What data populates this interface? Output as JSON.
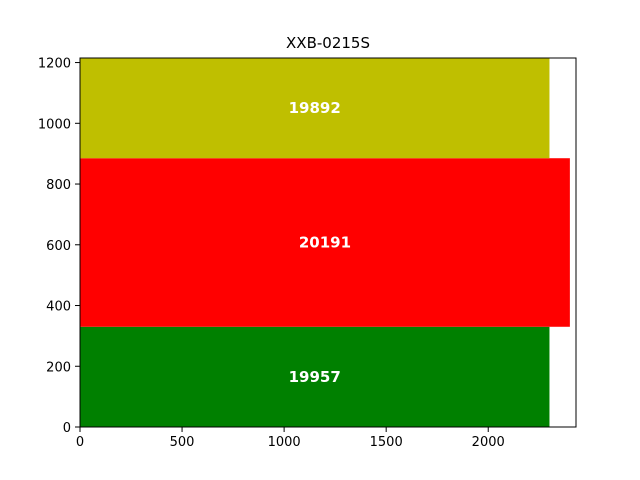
{
  "chart_data": {
    "type": "bar",
    "orientation": "horizontal",
    "title": "XXB-0215S",
    "xlabel": "",
    "ylabel": "",
    "xlim": [
      0,
      2430
    ],
    "ylim": [
      0,
      1215
    ],
    "x_ticks": [
      0,
      500,
      1000,
      1500,
      2000
    ],
    "y_ticks": [
      0,
      200,
      400,
      600,
      800,
      1000,
      1200
    ],
    "grid": false,
    "bars": [
      {
        "label": "19957",
        "y_start": 0,
        "y_end": 330,
        "x_end": 2300,
        "color": "#008000"
      },
      {
        "label": "20191",
        "y_start": 330,
        "y_end": 885,
        "x_end": 2400,
        "color": "#ff0000"
      },
      {
        "label": "19892",
        "y_start": 885,
        "y_end": 1215,
        "x_end": 2300,
        "color": "#bfbf00"
      }
    ]
  }
}
